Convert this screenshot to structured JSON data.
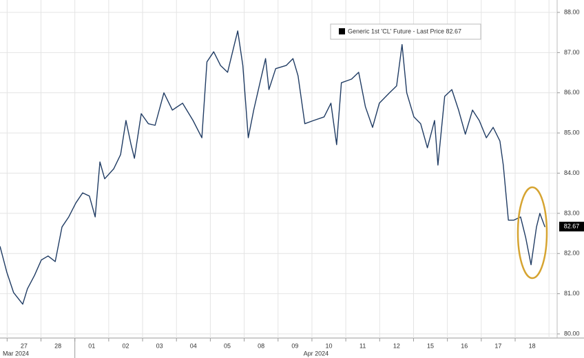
{
  "chart_data": {
    "type": "line",
    "x": [
      -0.71,
      -0.51,
      -0.31,
      -0.04,
      0.1,
      0.31,
      0.51,
      0.71,
      0.92,
      1.12,
      1.32,
      1.53,
      1.73,
      1.93,
      2.1,
      2.24,
      2.38,
      2.65,
      2.85,
      3.01,
      3.16,
      3.26,
      3.46,
      3.67,
      3.87,
      4.13,
      4.38,
      4.68,
      4.99,
      5.25,
      5.4,
      5.6,
      5.8,
      6.01,
      6.21,
      6.31,
      6.46,
      6.52,
      6.62,
      6.78,
      6.99,
      7.13,
      7.23,
      7.43,
      7.74,
      7.94,
      8.09,
      8.29,
      8.55,
      8.86,
      9.06,
      9.23,
      9.37,
      9.67,
      9.88,
      10.08,
      10.29,
      10.49,
      10.79,
      11.0,
      11.16,
      11.3,
      11.51,
      11.71,
      11.91,
      12.12,
      12.22,
      12.42,
      12.63,
      12.83,
      13.03,
      13.24,
      13.44,
      13.65,
      13.85,
      14.05,
      14.15,
      14.3,
      14.46,
      14.66,
      14.81,
      14.97,
      15.13,
      15.23,
      15.38
    ],
    "series": [
      {
        "name": "Generic 1st 'CL' Future - Last Price 82.67",
        "color": "#1f3b63",
        "values": [
          82.18,
          81.54,
          81.03,
          80.74,
          81.12,
          81.46,
          81.84,
          81.94,
          81.8,
          82.66,
          82.91,
          83.26,
          83.51,
          83.43,
          82.91,
          84.28,
          83.86,
          84.11,
          84.46,
          85.31,
          84.71,
          84.37,
          85.48,
          85.23,
          85.19,
          86.0,
          85.57,
          85.74,
          85.31,
          84.88,
          86.77,
          87.02,
          86.68,
          86.51,
          87.2,
          87.54,
          86.68,
          86.0,
          84.88,
          85.57,
          86.34,
          86.85,
          86.08,
          86.6,
          86.68,
          86.85,
          86.42,
          85.23,
          85.31,
          85.4,
          85.74,
          84.71,
          86.25,
          86.34,
          86.51,
          85.65,
          85.14,
          85.74,
          86.0,
          86.17,
          87.2,
          86.0,
          85.4,
          85.23,
          84.63,
          85.31,
          84.2,
          85.91,
          86.08,
          85.57,
          84.97,
          85.57,
          85.31,
          84.88,
          85.14,
          84.8,
          84.2,
          82.83,
          82.83,
          82.91,
          82.4,
          81.72,
          82.66,
          83.0,
          82.66
        ]
      }
    ],
    "last_value": 82.67,
    "xlim": [
      -0.71,
      15.74
    ],
    "xticks": [
      {
        "value": 0,
        "label": "27"
      },
      {
        "value": 1,
        "label": "28"
      },
      {
        "value": 2,
        "label": "01"
      },
      {
        "value": 3,
        "label": "02"
      },
      {
        "value": 4,
        "label": "03"
      },
      {
        "value": 5,
        "label": "04"
      },
      {
        "value": 6,
        "label": "05"
      },
      {
        "value": 7,
        "label": "08"
      },
      {
        "value": 8,
        "label": "09"
      },
      {
        "value": 9,
        "label": "10"
      },
      {
        "value": 10,
        "label": "11"
      },
      {
        "value": 11,
        "label": "12"
      },
      {
        "value": 12,
        "label": "15"
      },
      {
        "value": 13,
        "label": "16"
      },
      {
        "value": 14,
        "label": "17"
      },
      {
        "value": 15,
        "label": "18"
      }
    ],
    "x_period_labels": [
      "Mar 2024",
      "Apr 2024"
    ],
    "ylim": [
      80,
      88
    ],
    "yticks": [
      {
        "value": 80,
        "label": "80.00"
      },
      {
        "value": 81,
        "label": "81.00"
      },
      {
        "value": 82,
        "label": "82.00"
      },
      {
        "value": 83,
        "label": "83.00"
      },
      {
        "value": 84,
        "label": "84.00"
      },
      {
        "value": 85,
        "label": "85.00"
      },
      {
        "value": 86,
        "label": "86.00"
      },
      {
        "value": 87,
        "label": "87.00"
      },
      {
        "value": 88,
        "label": "88.00"
      }
    ],
    "grid": true
  }
}
